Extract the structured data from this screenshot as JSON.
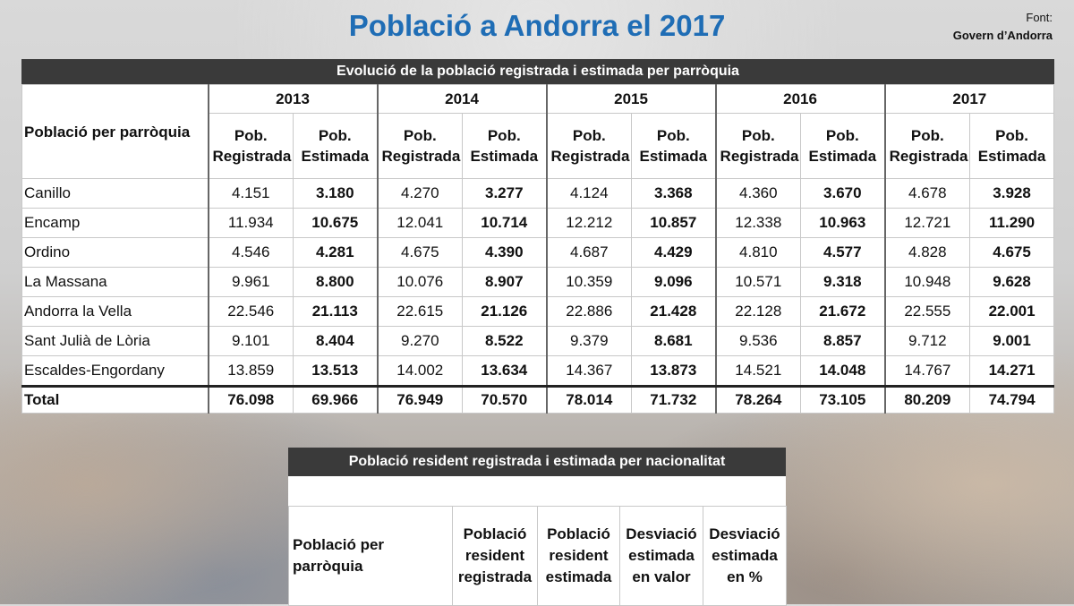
{
  "header": {
    "title": "Població a Andorra el 2017",
    "source_label": "Font:",
    "source": "Govern d’Andorra"
  },
  "table1": {
    "caption": "Evolució de la població registrada i estimada per parròquia",
    "row_header": "Població per parròquia",
    "years": [
      "2013",
      "2014",
      "2015",
      "2016",
      "2017"
    ],
    "subheaders": [
      "Pob. Registrada",
      "Pob. Estimada"
    ],
    "rows": [
      {
        "name": "Canillo",
        "values": [
          "4.151",
          "3.180",
          "4.270",
          "3.277",
          "4.124",
          "3.368",
          "4.360",
          "3.670",
          "4.678",
          "3.928"
        ]
      },
      {
        "name": "Encamp",
        "values": [
          "11.934",
          "10.675",
          "12.041",
          "10.714",
          "12.212",
          "10.857",
          "12.338",
          "10.963",
          "12.721",
          "11.290"
        ]
      },
      {
        "name": "Ordino",
        "values": [
          "4.546",
          "4.281",
          "4.675",
          "4.390",
          "4.687",
          "4.429",
          "4.810",
          "4.577",
          "4.828",
          "4.675"
        ]
      },
      {
        "name": "La Massana",
        "values": [
          "9.961",
          "8.800",
          "10.076",
          "8.907",
          "10.359",
          "9.096",
          "10.571",
          "9.318",
          "10.948",
          "9.628"
        ]
      },
      {
        "name": "Andorra la Vella",
        "values": [
          "22.546",
          "21.113",
          "22.615",
          "21.126",
          "22.886",
          "21.428",
          "22.128",
          "21.672",
          "22.555",
          "22.001"
        ]
      },
      {
        "name": "Sant Julià de Lòria",
        "values": [
          "9.101",
          "8.404",
          "9.270",
          "8.522",
          "9.379",
          "8.681",
          "9.536",
          "8.857",
          "9.712",
          "9.001"
        ]
      },
      {
        "name": "Escaldes-Engordany",
        "values": [
          "13.859",
          "13.513",
          "14.002",
          "13.634",
          "14.367",
          "13.873",
          "14.521",
          "14.048",
          "14.767",
          "14.271"
        ]
      }
    ],
    "total": {
      "name": "Total",
      "values": [
        "76.098",
        "69.966",
        "76.949",
        "70.570",
        "78.014",
        "71.732",
        "78.264",
        "73.105",
        "80.209",
        "74.794"
      ]
    }
  },
  "table2": {
    "caption": "Població resident registrada i estimada per nacionalitat",
    "headers": [
      "Població per parròquia",
      "Població resident registrada",
      "Població resident estimada",
      "Desviació estimada en valor",
      "Desviació estimada en %"
    ]
  }
}
